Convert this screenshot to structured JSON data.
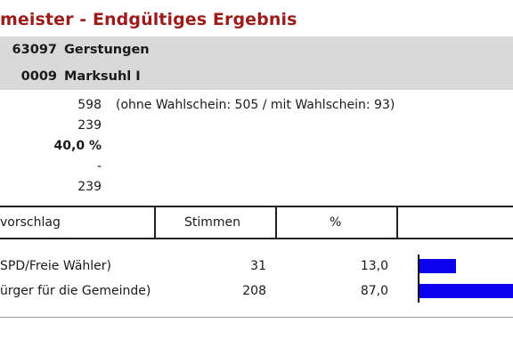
{
  "header": {
    "title": "meister - Endgültiges Ergebnis"
  },
  "location": [
    {
      "code": "63097",
      "name": "Gerstungen"
    },
    {
      "code": "0009",
      "name": "Marksuhl I"
    }
  ],
  "stats": [
    {
      "value": "598",
      "note": "(ohne Wahlschein: 505 / mit Wahlschein: 93)"
    },
    {
      "value": "239",
      "note": ""
    },
    {
      "value": "40,0 %",
      "note": ""
    },
    {
      "value": "-",
      "note": ""
    },
    {
      "value": "239",
      "note": ""
    }
  ],
  "table": {
    "headers": {
      "col1": "vorschlag",
      "col2": "Stimmen",
      "col3": "%"
    },
    "rows": [
      {
        "name": "SPD/Freie Wähler)",
        "votes": "31",
        "percent": "13,0",
        "percent_value": 13.0
      },
      {
        "name": "ürger für die Gemeinde)",
        "votes": "208",
        "percent": "87,0",
        "percent_value": 87.0
      }
    ]
  },
  "colors": {
    "title": "#9c1b1b",
    "bar": "#0a00ee",
    "infobox": "#d9d9d9"
  }
}
